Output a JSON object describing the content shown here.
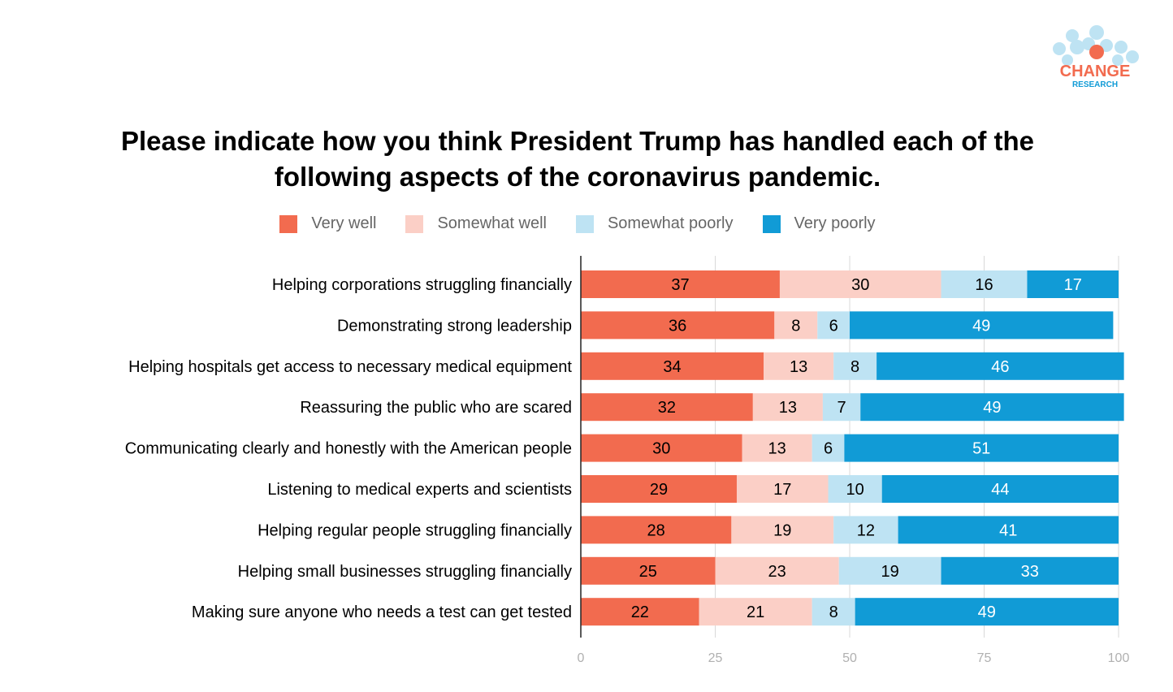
{
  "logo": {
    "line1": "CHANGE",
    "line2": "RESEARCH"
  },
  "chart_data": {
    "type": "bar",
    "orientation": "horizontal",
    "stacked": true,
    "title": "Please indicate how you think President Trump has handled each of the following aspects of the coronavirus pandemic.",
    "title_lines": [
      "Please indicate how you think President Trump has handled each of the",
      "following aspects of the coronavirus pandemic."
    ],
    "categories": [
      "Helping corporations struggling financially",
      "Demonstrating strong leadership",
      "Helping hospitals get access to necessary medical equipment",
      "Reassuring the public who are scared",
      "Communicating clearly and honestly with the American people",
      "Listening to medical experts and scientists",
      "Helping regular people struggling financially",
      "Helping small businesses struggling financially",
      "Making sure anyone who needs a test can get tested"
    ],
    "series": [
      {
        "name": "Very well",
        "color": "#F26B4F",
        "label_color": "#000000",
        "values": [
          37,
          36,
          34,
          32,
          30,
          29,
          28,
          25,
          22
        ]
      },
      {
        "name": "Somewhat well",
        "color": "#FBCFC6",
        "label_color": "#000000",
        "values": [
          30,
          8,
          13,
          13,
          13,
          17,
          19,
          23,
          21
        ]
      },
      {
        "name": "Somewhat poorly",
        "color": "#BEE3F3",
        "label_color": "#000000",
        "values": [
          16,
          6,
          8,
          7,
          6,
          10,
          12,
          19,
          8
        ]
      },
      {
        "name": "Very poorly",
        "color": "#119BD6",
        "label_color": "#FFFFFF",
        "values": [
          17,
          49,
          46,
          49,
          51,
          44,
          41,
          33,
          49
        ]
      }
    ],
    "xlim": [
      0,
      100
    ],
    "xticks": [
      0,
      25,
      50,
      75,
      100
    ],
    "grid": true,
    "legend_position": "top"
  }
}
